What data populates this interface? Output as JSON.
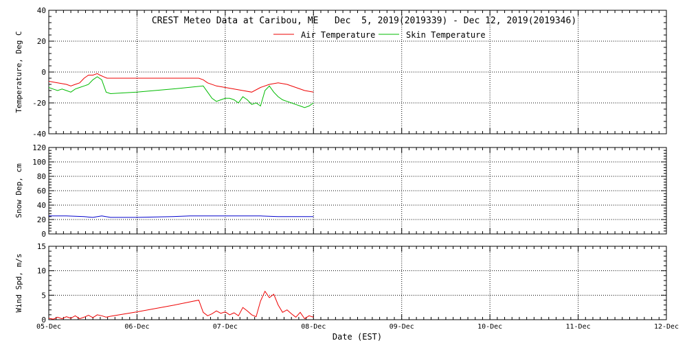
{
  "title": "CREST Meteo Data at Caribou, ME   Dec  5, 2019(2019339) - Dec 12, 2019(2019346)",
  "colors": {
    "air": "#ee0000",
    "skin": "#00bb00",
    "snow": "#0000cc",
    "wind": "#ee0000",
    "axis": "#000000"
  },
  "chart_data": [
    {
      "type": "line",
      "title": "CREST Meteo Data at Caribou, ME   Dec  5, 2019(2019339) - Dec 12, 2019(2019346)",
      "ylabel": "Temperature, Deg C",
      "xlabel": "",
      "ylim": [
        -40,
        40
      ],
      "yticks": [
        -40,
        -20,
        0,
        20,
        40
      ],
      "xlim": [
        0,
        7
      ],
      "grid": true,
      "legend_position": "top-center",
      "series": [
        {
          "name": "Air Temperature",
          "color": "#ee0000",
          "x": [
            0.0,
            0.1,
            0.2,
            0.25,
            0.3,
            0.35,
            0.4,
            0.45,
            0.5,
            0.55,
            0.58,
            0.62,
            0.66,
            0.7,
            0.8,
            1.0,
            1.2,
            1.4,
            1.6,
            1.7,
            1.75,
            1.8,
            1.9,
            2.0,
            2.1,
            2.2,
            2.3,
            2.4,
            2.5,
            2.6,
            2.7,
            2.8,
            2.9,
            3.0
          ],
          "values": [
            -6,
            -7,
            -8,
            -9,
            -8,
            -7,
            -4,
            -2,
            -2,
            -1,
            -2,
            -3,
            -4,
            -4,
            -4,
            -4,
            -4,
            -4,
            -4,
            -4,
            -5,
            -7,
            -9,
            -10,
            -11,
            -12,
            -13,
            -10,
            -8,
            -7,
            -8,
            -10,
            -12,
            -13
          ]
        },
        {
          "name": "Skin Temperature",
          "color": "#00bb00",
          "x": [
            0.0,
            0.05,
            0.1,
            0.15,
            0.2,
            0.25,
            0.3,
            0.35,
            0.4,
            0.45,
            0.5,
            0.55,
            0.6,
            0.65,
            0.7,
            1.0,
            1.4,
            1.75,
            1.8,
            1.85,
            1.9,
            1.95,
            2.0,
            2.05,
            2.1,
            2.15,
            2.2,
            2.25,
            2.3,
            2.35,
            2.4,
            2.45,
            2.5,
            2.55,
            2.6,
            2.65,
            2.7,
            2.75,
            2.8,
            2.85,
            2.9,
            2.95,
            3.0
          ],
          "values": [
            -10,
            -11,
            -12,
            -11,
            -12,
            -13,
            -11,
            -10,
            -9,
            -8,
            -5,
            -3,
            -5,
            -13,
            -14,
            -13,
            -11,
            -9,
            -13,
            -17,
            -19,
            -18,
            -17,
            -17,
            -18,
            -20,
            -16,
            -18,
            -21,
            -20,
            -22,
            -12,
            -9,
            -13,
            -16,
            -18,
            -19,
            -20,
            -21,
            -22,
            -23,
            -22,
            -20
          ]
        }
      ]
    },
    {
      "type": "line",
      "ylabel": "Snow Dep, cm",
      "xlabel": "",
      "ylim": [
        0,
        120
      ],
      "yticks": [
        0,
        20,
        40,
        60,
        80,
        100,
        120
      ],
      "xlim": [
        0,
        7
      ],
      "grid": true,
      "series": [
        {
          "color": "#0000cc",
          "x": [
            0.0,
            0.2,
            0.4,
            0.5,
            0.6,
            0.7,
            0.8,
            1.0,
            1.4,
            1.6,
            1.8,
            2.0,
            2.2,
            2.4,
            2.6,
            2.8,
            3.0
          ],
          "values": [
            25,
            25,
            24,
            23,
            25,
            23,
            23,
            23,
            24,
            25,
            25,
            25,
            25,
            25,
            24,
            24,
            24
          ]
        }
      ]
    },
    {
      "type": "line",
      "ylabel": "Wind Spd, m/s",
      "xlabel": "Date (EST)",
      "ylim": [
        0,
        15
      ],
      "yticks": [
        0,
        5,
        10,
        15
      ],
      "xlim": [
        0,
        7
      ],
      "xtick_labels": [
        "05-Dec",
        "06-Dec",
        "07-Dec",
        "08-Dec",
        "09-Dec",
        "10-Dec",
        "11-Dec",
        "12-Dec"
      ],
      "grid": true,
      "series": [
        {
          "color": "#ee0000",
          "x": [
            0.0,
            0.05,
            0.1,
            0.15,
            0.2,
            0.25,
            0.3,
            0.35,
            0.4,
            0.45,
            0.5,
            0.55,
            0.6,
            0.65,
            0.7,
            1.0,
            1.4,
            1.7,
            1.75,
            1.8,
            1.85,
            1.9,
            1.95,
            2.0,
            2.05,
            2.1,
            2.15,
            2.2,
            2.25,
            2.3,
            2.35,
            2.4,
            2.45,
            2.5,
            2.55,
            2.6,
            2.65,
            2.7,
            2.75,
            2.8,
            2.85,
            2.9,
            2.95,
            3.0
          ],
          "values": [
            0.3,
            0.1,
            0.5,
            0.2,
            0.6,
            0.3,
            0.8,
            0.2,
            0.5,
            0.9,
            0.4,
            1.0,
            0.8,
            0.5,
            0.7,
            1.6,
            2.9,
            4.0,
            1.5,
            0.8,
            1.2,
            1.8,
            1.3,
            1.6,
            1.0,
            1.4,
            0.8,
            2.5,
            1.8,
            1.0,
            0.6,
            3.8,
            5.8,
            4.5,
            5.2,
            3.0,
            1.5,
            2.0,
            1.2,
            0.5,
            1.5,
            0.2,
            0.8,
            0.5
          ]
        }
      ]
    }
  ]
}
